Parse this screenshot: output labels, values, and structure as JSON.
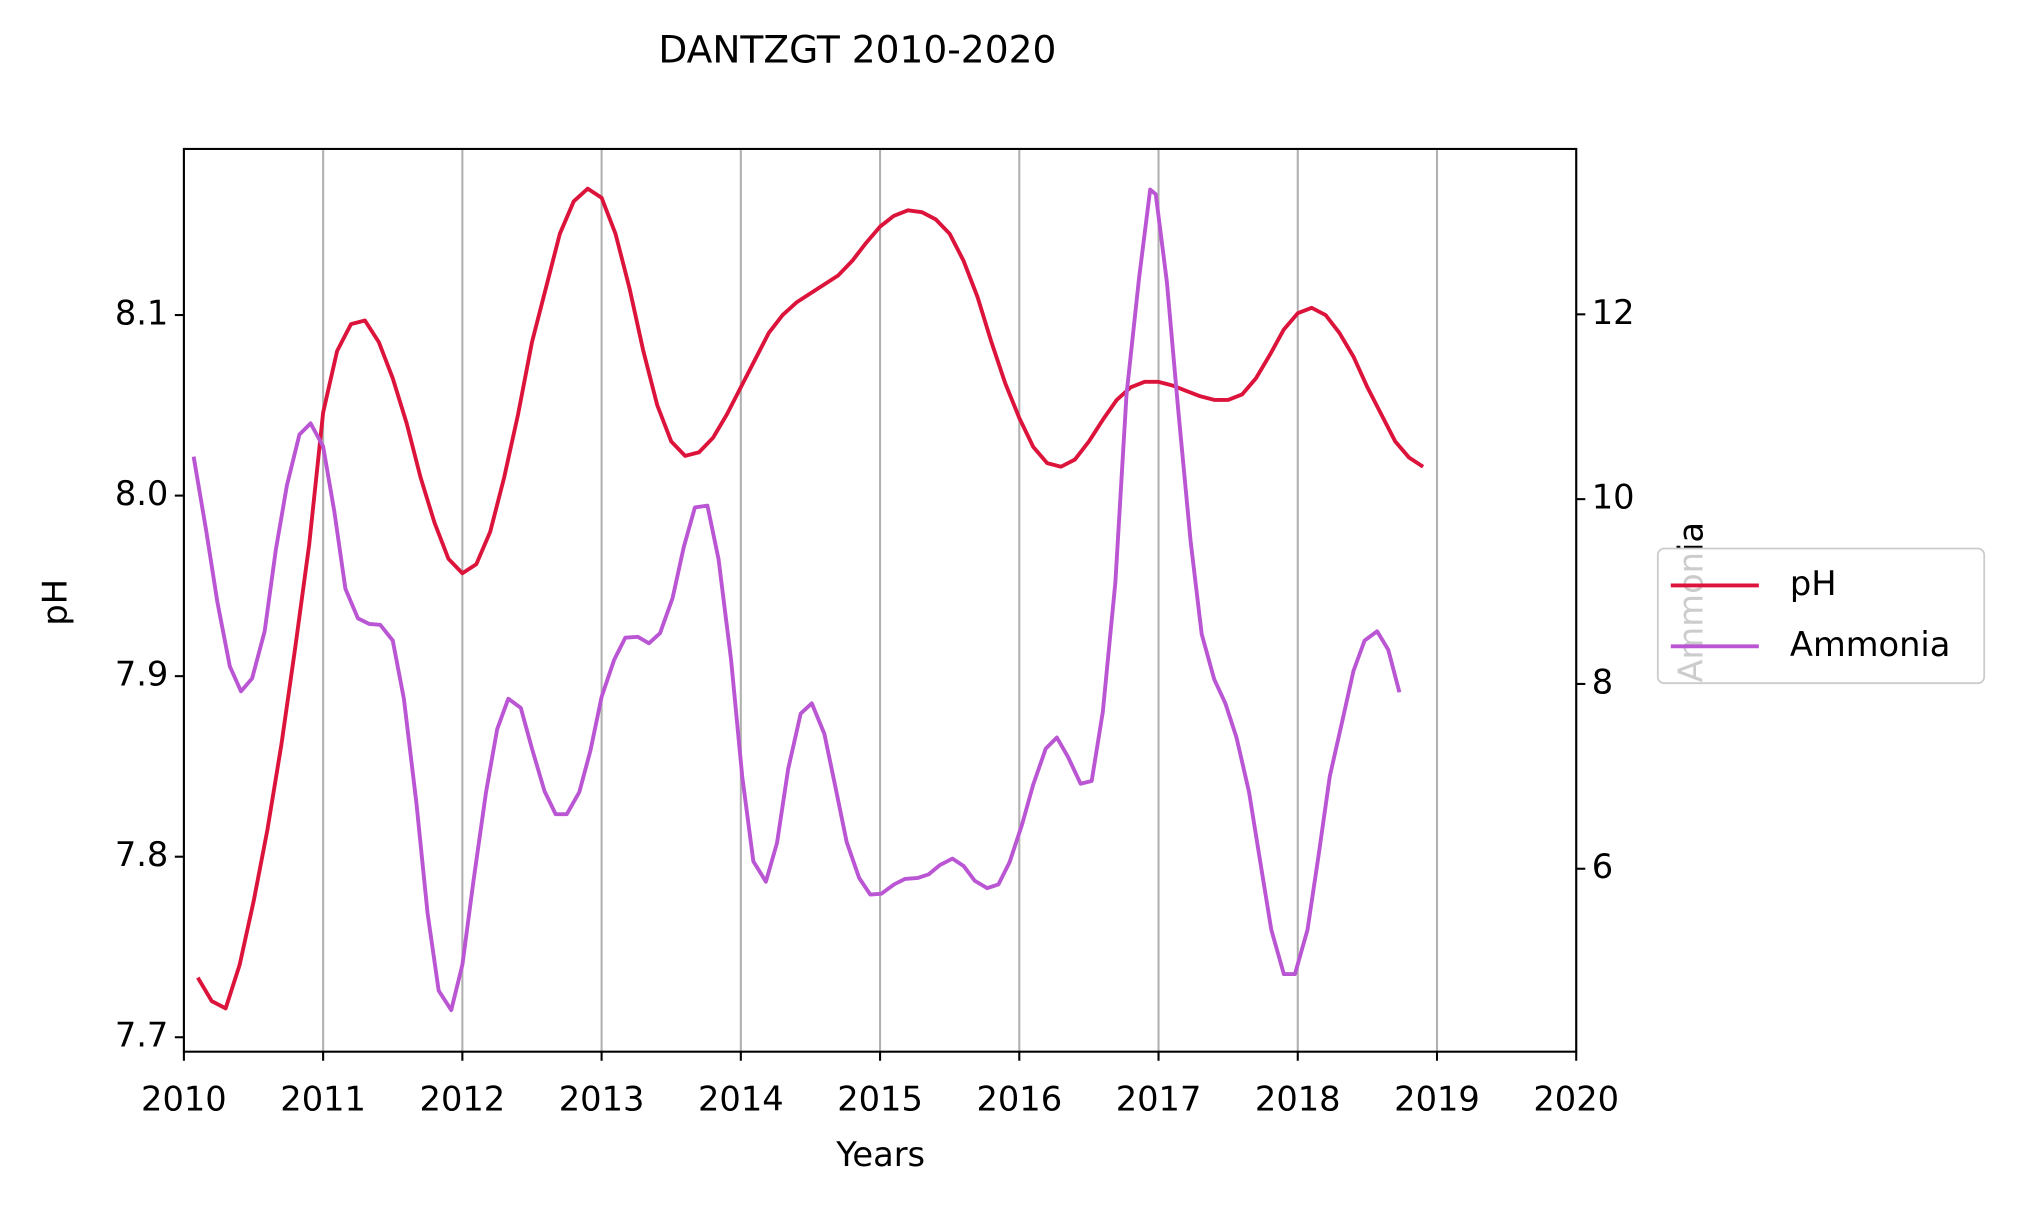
{
  "chart_data": {
    "type": "line",
    "title": "DANTZGT 2010-2020",
    "xlabel": "Years",
    "ylabel": "pH",
    "y2label": "Ammonia",
    "xlim": [
      2010,
      2020
    ],
    "xticks": [
      2010,
      2011,
      2012,
      2013,
      2014,
      2015,
      2016,
      2017,
      2018,
      2019,
      2020
    ],
    "ylim": [
      7.692,
      8.192
    ],
    "yticks": [
      7.7,
      7.8,
      7.9,
      {
        "value": 8,
        "label": "8.0"
      },
      8.1
    ],
    "y2lim": [
      4.02,
      13.79
    ],
    "y2ticks": [
      6,
      8,
      10,
      12
    ],
    "grid": "x",
    "legend": "center right",
    "series": [
      {
        "name": "pH",
        "color": "#dc143c",
        "x": [
          2010.1,
          2010.2,
          2010.3,
          2010.4,
          2010.5,
          2010.6,
          2010.7,
          2010.8,
          2010.9,
          2011.0,
          2011.1,
          2011.2,
          2011.3,
          2011.4,
          2011.5,
          2011.6,
          2011.7,
          2011.8,
          2011.9,
          2012.0,
          2012.1,
          2012.2,
          2012.3,
          2012.4,
          2012.5,
          2012.6,
          2012.7,
          2012.8,
          2012.9,
          2013.0,
          2013.1,
          2013.2,
          2013.3,
          2013.4,
          2013.5,
          2013.6,
          2013.7,
          2013.8,
          2013.9,
          2014.0,
          2014.1,
          2014.2,
          2014.3,
          2014.4,
          2014.5,
          2014.6,
          2014.7,
          2014.8,
          2014.9,
          2015.0,
          2015.1,
          2015.2,
          2015.3,
          2015.4,
          2015.5,
          2015.6,
          2015.7,
          2015.8,
          2015.9,
          2016.0,
          2016.1,
          2016.2,
          2016.3,
          2016.4,
          2016.5,
          2016.6,
          2016.7,
          2016.8,
          2016.9,
          2017.0,
          2017.1,
          2017.2,
          2017.3,
          2017.4,
          2017.5,
          2017.6,
          2017.7,
          2017.8,
          2017.9,
          2018.0,
          2018.1,
          2018.2,
          2018.3,
          2018.4,
          2018.5,
          2018.6,
          2018.7,
          2018.8,
          2018.9
        ],
        "values": [
          7.733,
          7.72,
          7.716,
          7.74,
          7.775,
          7.815,
          7.862,
          7.916,
          7.973,
          8.046,
          8.08,
          8.095,
          8.097,
          8.085,
          8.065,
          8.04,
          8.01,
          7.985,
          7.965,
          7.957,
          7.962,
          7.98,
          8.01,
          8.045,
          8.085,
          8.115,
          8.145,
          8.163,
          8.17,
          8.165,
          8.145,
          8.115,
          8.08,
          8.05,
          8.03,
          8.022,
          8.024,
          8.032,
          8.045,
          8.06,
          8.075,
          8.09,
          8.1,
          8.107,
          8.112,
          8.117,
          8.122,
          8.13,
          8.14,
          8.149,
          8.155,
          8.158,
          8.157,
          8.153,
          8.145,
          8.13,
          8.11,
          8.085,
          8.062,
          8.043,
          8.027,
          8.018,
          8.016,
          8.02,
          8.03,
          8.042,
          8.053,
          8.06,
          8.063,
          8.063,
          8.061,
          8.058,
          8.055,
          8.053,
          8.053,
          8.056,
          8.065,
          8.078,
          8.092,
          8.101,
          8.104,
          8.1,
          8.09,
          8.077,
          8.06,
          8.045,
          8.03,
          8.021,
          8.016
        ]
      },
      {
        "name": "Ammonia",
        "color": "#ba55d3",
        "axis": "y2",
        "x": [
          2010.07,
          2010.16,
          2010.24,
          2010.33,
          2010.41,
          2010.49,
          2010.58,
          2010.66,
          2010.74,
          2010.83,
          2010.91,
          2011.0,
          2011.08,
          2011.16,
          2011.25,
          2011.33,
          2011.41,
          2011.5,
          2011.58,
          2011.67,
          2011.75,
          2011.83,
          2011.92,
          2012.0,
          2012.08,
          2012.17,
          2012.25,
          2012.33,
          2012.42,
          2012.5,
          2012.59,
          2012.67,
          2012.75,
          2012.84,
          2012.92,
          2013.0,
          2013.09,
          2013.17,
          2013.26,
          2013.34,
          2013.42,
          2013.51,
          2013.59,
          2013.67,
          2013.76,
          2013.84,
          2013.93,
          2014.01,
          2014.09,
          2014.18,
          2014.26,
          2014.34,
          2014.43,
          2014.51,
          2014.6,
          2014.68,
          2014.76,
          2014.85,
          2014.93,
          2015.01,
          2015.1,
          2015.18,
          2015.27,
          2015.35,
          2015.43,
          2015.52,
          2015.6,
          2015.68,
          2015.77,
          2015.85,
          2015.93,
          2016.02,
          2016.1,
          2016.19,
          2016.27,
          2016.35,
          2016.44,
          2016.52,
          2016.6,
          2016.69,
          2016.77,
          2016.86,
          2016.94,
          2016.98,
          2017.06,
          2017.14,
          2017.23,
          2017.31,
          2017.4,
          2017.48,
          2017.56,
          2017.65,
          2017.73,
          2017.81,
          2017.9,
          2017.98,
          2018.07,
          2018.15,
          2018.23,
          2018.32,
          2018.4,
          2018.48,
          2018.57,
          2018.65,
          2018.73
        ],
        "values": [
          10.46,
          9.66,
          8.89,
          8.19,
          7.92,
          8.06,
          8.57,
          9.45,
          10.15,
          10.7,
          10.82,
          10.57,
          9.87,
          9.03,
          8.71,
          8.65,
          8.64,
          8.47,
          7.84,
          6.71,
          5.52,
          4.68,
          4.47,
          4.96,
          5.87,
          6.83,
          7.51,
          7.84,
          7.74,
          7.3,
          6.84,
          6.59,
          6.59,
          6.83,
          7.28,
          7.86,
          8.26,
          8.5,
          8.51,
          8.44,
          8.55,
          8.93,
          9.48,
          9.91,
          9.93,
          9.35,
          8.26,
          7.0,
          6.08,
          5.86,
          6.28,
          7.08,
          7.68,
          7.79,
          7.46,
          6.88,
          6.29,
          5.9,
          5.72,
          5.73,
          5.83,
          5.89,
          5.9,
          5.94,
          6.04,
          6.11,
          6.03,
          5.87,
          5.79,
          5.83,
          6.07,
          6.48,
          6.91,
          7.3,
          7.42,
          7.21,
          6.92,
          6.95,
          7.7,
          9.1,
          11.13,
          12.39,
          13.35,
          13.3,
          12.35,
          10.99,
          9.55,
          8.54,
          8.05,
          7.79,
          7.42,
          6.83,
          6.08,
          5.34,
          4.86,
          4.86,
          5.34,
          6.15,
          7.0,
          7.6,
          8.14,
          8.47,
          8.57,
          8.37,
          7.91
        ]
      }
    ]
  }
}
